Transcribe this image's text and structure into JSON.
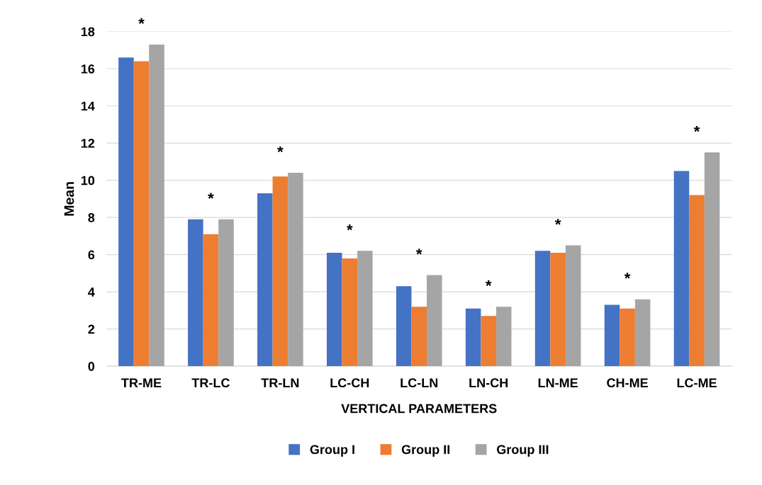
{
  "chart_data": {
    "type": "bar",
    "xlabel": "VERTICAL PARAMETERS",
    "ylabel": "Mean",
    "categories": [
      "TR-ME",
      "TR-LC",
      "TR-LN",
      "LC-CH",
      "LC-LN",
      "LN-CH",
      "LN-ME",
      "CH-ME",
      "LC-ME"
    ],
    "series": [
      {
        "name": "Group I",
        "color": "#4472c4",
        "values": [
          16.6,
          7.9,
          9.3,
          6.1,
          4.3,
          3.1,
          6.2,
          3.3,
          10.5
        ]
      },
      {
        "name": "Group II",
        "color": "#ed7d31",
        "values": [
          16.4,
          7.1,
          10.2,
          5.8,
          3.2,
          2.7,
          6.1,
          3.1,
          9.2
        ]
      },
      {
        "name": "Group III",
        "color": "#a5a5a5",
        "values": [
          17.3,
          7.9,
          10.4,
          6.2,
          4.9,
          3.2,
          6.5,
          3.6,
          11.5
        ]
      }
    ],
    "annotations": [
      "*",
      "*",
      "*",
      "*",
      "*",
      "*",
      "*",
      "*",
      "*"
    ],
    "ylim": [
      0,
      18
    ],
    "yticks": [
      0,
      2,
      4,
      6,
      8,
      10,
      12,
      14,
      16,
      18
    ],
    "grid": "y",
    "legend": "bottom"
  }
}
